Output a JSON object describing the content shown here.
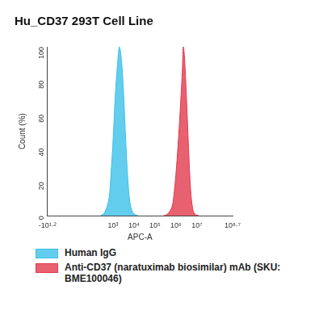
{
  "chart_data": {
    "type": "area",
    "title": "Hu_CD37 293T Cell Line",
    "x_label": "APC-A",
    "y_label": "Count (%)",
    "xlim": [
      -15.85,
      501187234
    ],
    "xticks": [
      {
        "value": -15.85,
        "label": "-10¹·²"
      },
      {
        "value": 1000,
        "label": "10³"
      },
      {
        "value": 10000,
        "label": "10⁴"
      },
      {
        "value": 100000,
        "label": "10⁵"
      },
      {
        "value": 1000000,
        "label": "10⁶"
      },
      {
        "value": 10000000,
        "label": "10⁷"
      },
      {
        "value": 501187234,
        "label": "10⁸·⁷"
      }
    ],
    "ylim": [
      0,
      100
    ],
    "yticks": [
      0,
      20,
      40,
      60,
      80,
      100
    ],
    "grid": false,
    "legend": "bottom",
    "series": [
      {
        "name": "Human IgG",
        "color": "#3cc0ea",
        "x": [
          251,
          398,
          631,
          794,
          1000,
          1259,
          1585,
          1995,
          2512,
          3162,
          3981,
          5012,
          6310,
          7943,
          10000,
          15849
        ],
        "values": [
          0,
          2,
          10,
          25,
          45,
          70,
          88,
          100,
          92,
          72,
          45,
          22,
          8,
          3,
          1,
          0
        ]
      },
      {
        "name": "Anti-CD37 (naratuximab biosimilar) mAb (SKU: BME100046)",
        "color": "#e23a4e",
        "x": [
          251189,
          398107,
          630957,
          794328,
          1000000,
          1258925,
          1584893,
          1995262,
          2238721,
          2511886,
          3162278,
          3981072,
          5011872,
          6309573,
          7943282,
          12589254
        ],
        "values": [
          0,
          1,
          5,
          12,
          25,
          42,
          62,
          85,
          100,
          95,
          70,
          40,
          15,
          4,
          1,
          0
        ]
      }
    ]
  }
}
